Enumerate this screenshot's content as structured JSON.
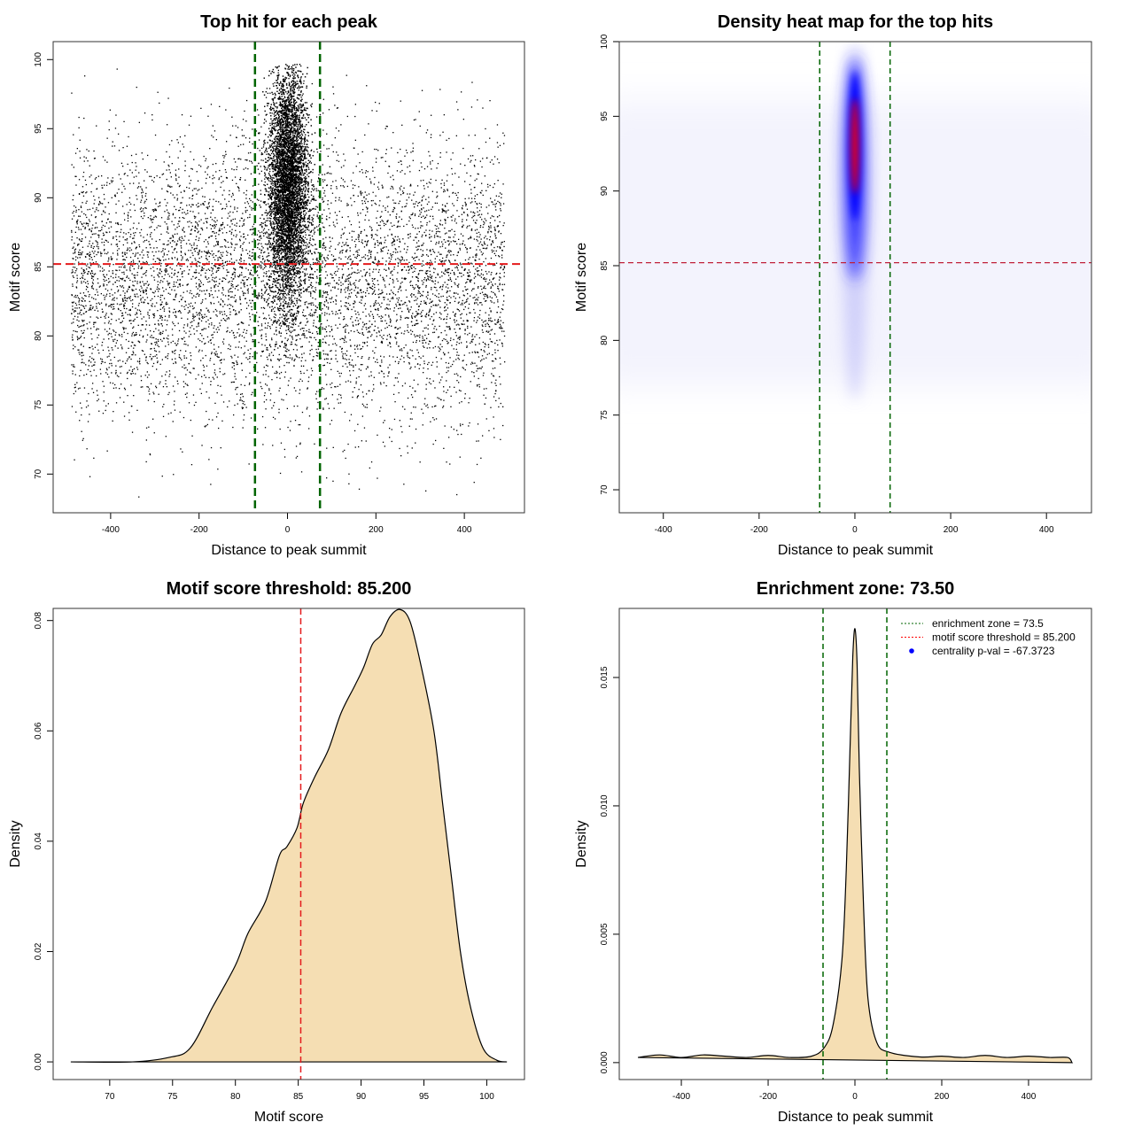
{
  "chart_data": [
    {
      "type": "scatter",
      "title": "Top hit for each peak",
      "xlabel": "Distance to peak summit",
      "ylabel": "Motif score",
      "xlim": [
        -530,
        536
      ],
      "ylim": [
        67.2,
        101.3
      ],
      "xticks": [
        -400,
        -200,
        0,
        200,
        400
      ],
      "yticks": [
        70,
        75,
        80,
        85,
        90,
        95,
        100
      ],
      "vlines": {
        "values": [
          -73.5,
          73.5
        ],
        "color": "#006400",
        "style": "dashed"
      },
      "hline": {
        "value": 85.2,
        "color": "#e41a1c",
        "style": "dashed"
      },
      "grid": false
    },
    {
      "type": "heatmap",
      "title": "Density heat map for the top hits",
      "xlabel": "Distance to peak summit",
      "ylabel": "Motif score",
      "xlim": [
        -492,
        494
      ],
      "ylim": [
        68.46,
        100
      ],
      "xticks": [
        -400,
        -200,
        0,
        200,
        400
      ],
      "yticks": [
        70,
        75,
        80,
        85,
        90,
        95,
        100
      ],
      "colors": [
        "#ffffff",
        "#0000ff",
        "#ff0000"
      ],
      "peak": {
        "x": 0,
        "y": 93
      },
      "vlines": {
        "values": [
          -73.5,
          73.5
        ],
        "color": "#006400",
        "style": "dashed"
      },
      "hline": {
        "value": 85.2,
        "color": "#c0203a",
        "style": "dashed"
      },
      "grid": false
    },
    {
      "type": "area",
      "title": "Motif score threshold: 85.200",
      "xlabel": "Motif score",
      "ylabel": "Density",
      "xlim": [
        65.5,
        103.0
      ],
      "ylim": [
        -0.0032,
        0.0822
      ],
      "xticks": [
        70,
        75,
        80,
        85,
        90,
        95,
        100
      ],
      "yticks": [
        0,
        0.02,
        0.04,
        0.06,
        0.08
      ],
      "ytick_labels": [
        "0.00",
        "0.02",
        "0.04",
        "0.06",
        "0.08"
      ],
      "fill": "#f5deb3",
      "x": [
        66.9,
        71.8,
        74.7,
        76.4,
        78.2,
        80.0,
        81.0,
        82.4,
        83.5,
        84.1,
        84.9,
        85.4,
        86.3,
        87.4,
        88.4,
        89.5,
        90.2,
        90.9,
        91.6,
        92.3,
        93.1,
        93.9,
        94.8,
        95.8,
        96.5,
        97.2,
        97.9,
        98.7,
        99.7,
        100.8,
        101.6
      ],
      "y": [
        0,
        0,
        0.0008,
        0.0025,
        0.01,
        0.0175,
        0.0233,
        0.0291,
        0.0374,
        0.039,
        0.0424,
        0.0469,
        0.0516,
        0.0566,
        0.0632,
        0.0682,
        0.0715,
        0.0757,
        0.0774,
        0.0807,
        0.082,
        0.0798,
        0.0715,
        0.0599,
        0.0466,
        0.0333,
        0.02,
        0.01,
        0.0025,
        0.0003,
        0
      ],
      "vline": {
        "value": 85.2,
        "color": "#e41a1c",
        "style": "dashed"
      },
      "grid": false
    },
    {
      "type": "area",
      "title": "Enrichment zone: 73.50",
      "xlabel": "Distance to peak summit",
      "ylabel": "Density",
      "xlim": [
        -543,
        545
      ],
      "ylim": [
        -0.00066,
        0.01769
      ],
      "xticks": [
        -400,
        -200,
        0,
        200,
        400
      ],
      "yticks": [
        0,
        0.005,
        0.01,
        0.015
      ],
      "ytick_labels": [
        "0.000",
        "0.005",
        "0.010",
        "0.015"
      ],
      "fill": "#f5deb3",
      "x": [
        -500,
        -450,
        -400,
        -350,
        -300,
        -250,
        -200,
        -150,
        -100,
        -70,
        -50,
        -30,
        -20,
        -10,
        -5,
        0,
        5,
        10,
        20,
        30,
        50,
        80,
        150,
        200,
        250,
        300,
        350,
        400,
        450,
        490,
        500
      ],
      "y": [
        0.0002,
        0.0003,
        0.0002,
        0.0003,
        0.00025,
        0.0002,
        0.00028,
        0.0002,
        0.00025,
        0.0006,
        0.0015,
        0.004,
        0.0075,
        0.013,
        0.0158,
        0.0169,
        0.0155,
        0.0115,
        0.006,
        0.0025,
        0.0008,
        0.0004,
        0.00022,
        0.00025,
        0.0002,
        0.00028,
        0.0002,
        0.00025,
        0.0002,
        0.0002,
        0
      ],
      "vlines": {
        "values": [
          -73.5,
          73.5
        ],
        "color": "#006400",
        "style": "dashed"
      },
      "legend": {
        "placement": "top-right",
        "entries": [
          {
            "label": "enrichment zone = 73.5",
            "color": "#006400",
            "style": "dotted-line"
          },
          {
            "label": "motif score threshold = 85.200",
            "color": "#ff0000",
            "style": "dotted-line"
          },
          {
            "label": "centrality p-val = -67.3723",
            "color": "#0000ff",
            "style": "point"
          }
        ]
      },
      "grid": false
    }
  ]
}
